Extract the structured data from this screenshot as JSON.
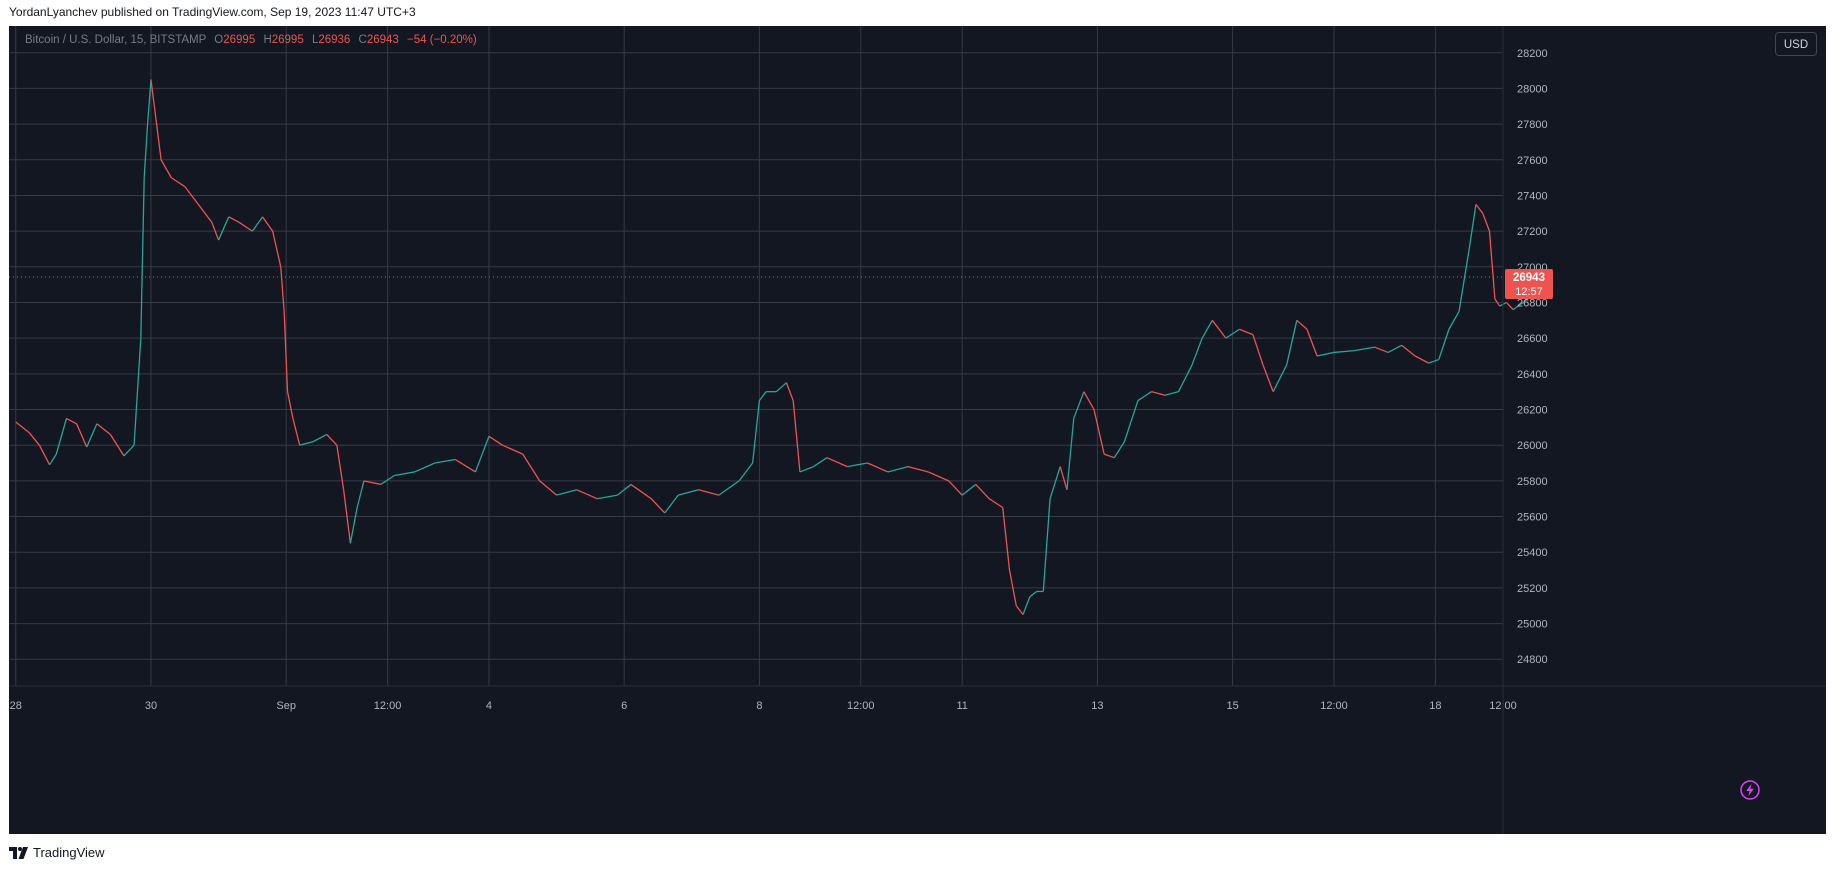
{
  "publish_line": "YordanLyanchev published on TradingView.com, Sep 19, 2023 11:47 UTC+3",
  "symbol": {
    "name": "Bitcoin / U.S. Dollar, 15, BITSTAMP",
    "open_label": "O",
    "open": "26995",
    "high_label": "H",
    "high": "26995",
    "low_label": "L",
    "low": "26936",
    "close_label": "C",
    "close": "26943",
    "change": "−54 (−0.20%)"
  },
  "currency_button": "USD",
  "price_badge": {
    "price": "26943",
    "countdown": "12:57"
  },
  "footer_brand": "TradingView",
  "colors": {
    "background": "#131722",
    "grid": "#363a45",
    "up": "#26a69a",
    "down": "#ef5350",
    "axis_text": "#b2b5be",
    "accent_icon": "#e040fb"
  },
  "icons": {
    "alert": "lightning-icon",
    "logo": "tradingview-logo-icon"
  },
  "chart_data": {
    "type": "line",
    "instrument": "Bitcoin / U.S. Dollar, 15, BITSTAMP",
    "ylim": [
      24650,
      28350
    ],
    "y_ticks": [
      24800,
      25000,
      25200,
      25400,
      25600,
      25800,
      26000,
      26200,
      26400,
      26600,
      26800,
      27000,
      27200,
      27400,
      27600,
      27800,
      28000,
      28200
    ],
    "x_range": [
      -0.1,
      22.0
    ],
    "x_ticks": [
      {
        "label": "28",
        "x": 0
      },
      {
        "label": "30",
        "x": 2
      },
      {
        "label": "Sep",
        "x": 4
      },
      {
        "label": "12:00",
        "x": 5.5
      },
      {
        "label": "4",
        "x": 7
      },
      {
        "label": "6",
        "x": 9
      },
      {
        "label": "8",
        "x": 11
      },
      {
        "label": "12:00",
        "x": 12.5
      },
      {
        "label": "11",
        "x": 14
      },
      {
        "label": "13",
        "x": 16
      },
      {
        "label": "15",
        "x": 18
      },
      {
        "label": "12:00",
        "x": 19.5
      },
      {
        "label": "18",
        "x": 21
      },
      {
        "label": "12:00",
        "x": 22
      }
    ],
    "current_price": 26943,
    "price_path": [
      [
        0.0,
        26130
      ],
      [
        0.2,
        26070
      ],
      [
        0.35,
        26000
      ],
      [
        0.5,
        25890
      ],
      [
        0.6,
        25950
      ],
      [
        0.75,
        26150
      ],
      [
        0.9,
        26120
      ],
      [
        1.05,
        25990
      ],
      [
        1.2,
        26120
      ],
      [
        1.4,
        26060
      ],
      [
        1.6,
        25940
      ],
      [
        1.75,
        26000
      ],
      [
        1.85,
        26600
      ],
      [
        1.9,
        27500
      ],
      [
        1.95,
        27800
      ],
      [
        2.0,
        28050
      ],
      [
        2.05,
        27900
      ],
      [
        2.15,
        27600
      ],
      [
        2.3,
        27500
      ],
      [
        2.5,
        27450
      ],
      [
        2.7,
        27350
      ],
      [
        2.9,
        27250
      ],
      [
        3.0,
        27150
      ],
      [
        3.15,
        27280
      ],
      [
        3.3,
        27250
      ],
      [
        3.5,
        27200
      ],
      [
        3.65,
        27280
      ],
      [
        3.8,
        27200
      ],
      [
        3.92,
        27000
      ],
      [
        3.97,
        26750
      ],
      [
        4.02,
        26300
      ],
      [
        4.1,
        26150
      ],
      [
        4.2,
        26000
      ],
      [
        4.4,
        26020
      ],
      [
        4.6,
        26060
      ],
      [
        4.75,
        26000
      ],
      [
        4.85,
        25750
      ],
      [
        4.95,
        25450
      ],
      [
        5.05,
        25650
      ],
      [
        5.15,
        25800
      ],
      [
        5.4,
        25780
      ],
      [
        5.6,
        25830
      ],
      [
        5.9,
        25850
      ],
      [
        6.2,
        25900
      ],
      [
        6.5,
        25920
      ],
      [
        6.8,
        25850
      ],
      [
        7.0,
        26050
      ],
      [
        7.2,
        26000
      ],
      [
        7.5,
        25950
      ],
      [
        7.75,
        25800
      ],
      [
        8.0,
        25720
      ],
      [
        8.3,
        25750
      ],
      [
        8.6,
        25700
      ],
      [
        8.9,
        25720
      ],
      [
        9.1,
        25780
      ],
      [
        9.4,
        25700
      ],
      [
        9.6,
        25620
      ],
      [
        9.8,
        25720
      ],
      [
        10.1,
        25750
      ],
      [
        10.4,
        25720
      ],
      [
        10.7,
        25800
      ],
      [
        10.9,
        25900
      ],
      [
        11.0,
        26250
      ],
      [
        11.1,
        26300
      ],
      [
        11.25,
        26300
      ],
      [
        11.4,
        26350
      ],
      [
        11.5,
        26250
      ],
      [
        11.6,
        25850
      ],
      [
        11.8,
        25880
      ],
      [
        12.0,
        25930
      ],
      [
        12.3,
        25880
      ],
      [
        12.6,
        25900
      ],
      [
        12.9,
        25850
      ],
      [
        13.2,
        25880
      ],
      [
        13.5,
        25850
      ],
      [
        13.8,
        25800
      ],
      [
        14.0,
        25720
      ],
      [
        14.2,
        25780
      ],
      [
        14.4,
        25700
      ],
      [
        14.6,
        25650
      ],
      [
        14.7,
        25300
      ],
      [
        14.8,
        25100
      ],
      [
        14.9,
        25050
      ],
      [
        15.0,
        25150
      ],
      [
        15.1,
        25180
      ],
      [
        15.2,
        25180
      ],
      [
        15.3,
        25700
      ],
      [
        15.45,
        25880
      ],
      [
        15.55,
        25750
      ],
      [
        15.65,
        26150
      ],
      [
        15.8,
        26300
      ],
      [
        15.95,
        26200
      ],
      [
        16.1,
        25950
      ],
      [
        16.25,
        25930
      ],
      [
        16.4,
        26020
      ],
      [
        16.6,
        26250
      ],
      [
        16.8,
        26300
      ],
      [
        17.0,
        26280
      ],
      [
        17.2,
        26300
      ],
      [
        17.4,
        26450
      ],
      [
        17.55,
        26600
      ],
      [
        17.7,
        26700
      ],
      [
        17.9,
        26600
      ],
      [
        18.1,
        26650
      ],
      [
        18.3,
        26620
      ],
      [
        18.45,
        26450
      ],
      [
        18.6,
        26300
      ],
      [
        18.8,
        26450
      ],
      [
        18.95,
        26700
      ],
      [
        19.1,
        26650
      ],
      [
        19.25,
        26500
      ],
      [
        19.5,
        26520
      ],
      [
        19.8,
        26530
      ],
      [
        20.1,
        26550
      ],
      [
        20.3,
        26520
      ],
      [
        20.5,
        26560
      ],
      [
        20.7,
        26500
      ],
      [
        20.9,
        26460
      ],
      [
        21.05,
        26480
      ],
      [
        21.2,
        26650
      ],
      [
        21.35,
        26750
      ],
      [
        21.5,
        27100
      ],
      [
        21.6,
        27350
      ],
      [
        21.7,
        27300
      ],
      [
        21.8,
        27200
      ],
      [
        21.88,
        26820
      ],
      [
        21.95,
        26780
      ],
      [
        22.05,
        26800
      ],
      [
        22.15,
        26760
      ],
      [
        22.3,
        26800
      ],
      [
        22.45,
        26850
      ],
      [
        22.55,
        26943
      ]
    ]
  }
}
